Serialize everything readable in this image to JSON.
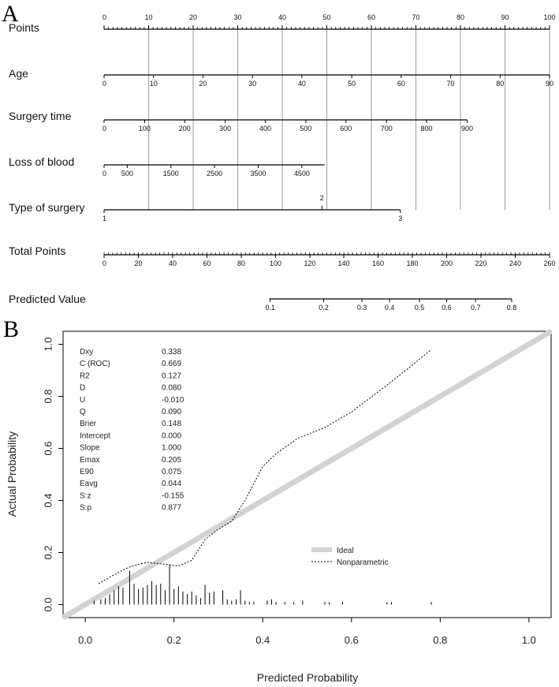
{
  "panel_a_letter": "A",
  "panel_b_letter": "B",
  "chart_data": [
    {
      "type": "nomogram",
      "rows": [
        {
          "label": "Points",
          "points": [
            0,
            100
          ],
          "ticks": [
            {
              "pt": 0,
              "label": "0"
            },
            {
              "pt": 10,
              "label": "10"
            },
            {
              "pt": 20,
              "label": "20"
            },
            {
              "pt": 30,
              "label": "30"
            },
            {
              "pt": 40,
              "label": "40"
            },
            {
              "pt": 50,
              "label": "50"
            },
            {
              "pt": 60,
              "label": "60"
            },
            {
              "pt": 70,
              "label": "70"
            },
            {
              "pt": 80,
              "label": "80"
            },
            {
              "pt": 90,
              "label": "90"
            },
            {
              "pt": 100,
              "label": "100"
            }
          ]
        },
        {
          "label": "Age",
          "points": [
            0,
            100
          ],
          "ticks": [
            {
              "pt": 0,
              "label": "0"
            },
            {
              "pt": 11.1,
              "label": "10"
            },
            {
              "pt": 22.2,
              "label": "20"
            },
            {
              "pt": 33.3,
              "label": "30"
            },
            {
              "pt": 44.4,
              "label": "40"
            },
            {
              "pt": 55.6,
              "label": "50"
            },
            {
              "pt": 66.7,
              "label": "60"
            },
            {
              "pt": 77.8,
              "label": "70"
            },
            {
              "pt": 88.9,
              "label": "80"
            },
            {
              "pt": 100,
              "label": "90"
            }
          ]
        },
        {
          "label": "Surgery time",
          "points": [
            0,
            81.5
          ],
          "ticks": [
            {
              "pt": 0,
              "label": "0"
            },
            {
              "pt": 9.1,
              "label": "100"
            },
            {
              "pt": 18.1,
              "label": "200"
            },
            {
              "pt": 27.2,
              "label": "300"
            },
            {
              "pt": 36.2,
              "label": "400"
            },
            {
              "pt": 45.3,
              "label": "500"
            },
            {
              "pt": 54.3,
              "label": "600"
            },
            {
              "pt": 63.4,
              "label": "700"
            },
            {
              "pt": 72.4,
              "label": "800"
            },
            {
              "pt": 81.5,
              "label": "900"
            }
          ]
        },
        {
          "label": "Loss of blood",
          "points": [
            0,
            49.5
          ],
          "ticks": [
            {
              "pt": 0,
              "label": "0"
            },
            {
              "pt": 5.2,
              "label": "500"
            },
            {
              "pt": 15,
              "label": "1500"
            },
            {
              "pt": 24.8,
              "label": "2500"
            },
            {
              "pt": 34.6,
              "label": "3500"
            },
            {
              "pt": 44.4,
              "label": "4500"
            }
          ]
        },
        {
          "label": "Type of surgery",
          "points": [
            0,
            66.5
          ],
          "ticks": [
            {
              "pt": 0,
              "label": "1",
              "pos": "below"
            },
            {
              "pt": 48.9,
              "label": "2",
              "pos": "above"
            },
            {
              "pt": 66.5,
              "label": "3",
              "pos": "below"
            }
          ]
        },
        {
          "label": "Total Points",
          "points": [
            0,
            100
          ],
          "ticks": [
            {
              "pt": 0,
              "label": "0"
            },
            {
              "pt": 7.7,
              "label": "20"
            },
            {
              "pt": 15.4,
              "label": "40"
            },
            {
              "pt": 23.1,
              "label": "60"
            },
            {
              "pt": 30.8,
              "label": "80"
            },
            {
              "pt": 38.5,
              "label": "100"
            },
            {
              "pt": 46.2,
              "label": "120"
            },
            {
              "pt": 53.8,
              "label": "140"
            },
            {
              "pt": 61.5,
              "label": "160"
            },
            {
              "pt": 69.2,
              "label": "180"
            },
            {
              "pt": 76.9,
              "label": "200"
            },
            {
              "pt": 84.6,
              "label": "220"
            },
            {
              "pt": 92.3,
              "label": "240"
            },
            {
              "pt": 100,
              "label": "260"
            }
          ]
        },
        {
          "label": "Predicted Value",
          "points": [
            37.1,
            91.5
          ],
          "ticks": [
            {
              "pt": 37.3,
              "label": "0.1"
            },
            {
              "pt": 49.3,
              "label": "0.2"
            },
            {
              "pt": 57.9,
              "label": "0.3"
            },
            {
              "pt": 64.1,
              "label": "0.4"
            },
            {
              "pt": 70.8,
              "label": "0.5"
            },
            {
              "pt": 76.9,
              "label": "0.6"
            },
            {
              "pt": 83.4,
              "label": "0.7"
            },
            {
              "pt": 91.5,
              "label": "0.8"
            }
          ]
        }
      ]
    },
    {
      "type": "calibration",
      "xlabel": "Predicted Probability",
      "ylabel": "Actual Probability",
      "xlim": [
        -0.05,
        1.05
      ],
      "ylim": [
        -0.05,
        1.05
      ],
      "x_ticks": [
        "0.0",
        "0.2",
        "0.4",
        "0.6",
        "0.8",
        "1.0"
      ],
      "y_ticks": [
        "0.0",
        "0.2",
        "0.4",
        "0.6",
        "0.8",
        "1.0"
      ],
      "legend": [
        {
          "name": "Ideal",
          "style": "thick-gray"
        },
        {
          "name": "Nonparametric",
          "style": "dotted"
        }
      ],
      "stats": [
        {
          "name": "Dxy",
          "value": "0.338"
        },
        {
          "name": "C (ROC)",
          "value": "0.669"
        },
        {
          "name": "R2",
          "value": "0.127"
        },
        {
          "name": "D",
          "value": "0.080"
        },
        {
          "name": "U",
          "value": "-0.010"
        },
        {
          "name": "Q",
          "value": "0.090"
        },
        {
          "name": "Brier",
          "value": "0.148"
        },
        {
          "name": "Intercept",
          "value": "0.000"
        },
        {
          "name": "Slope",
          "value": "1.000"
        },
        {
          "name": "Emax",
          "value": "0.205"
        },
        {
          "name": "E90",
          "value": "0.075"
        },
        {
          "name": "Eavg",
          "value": "0.044"
        },
        {
          "name": "S:z",
          "value": "-0.155"
        },
        {
          "name": "S:p",
          "value": "0.877"
        }
      ],
      "nonparametric": [
        [
          0.03,
          0.08
        ],
        [
          0.06,
          0.11
        ],
        [
          0.1,
          0.145
        ],
        [
          0.14,
          0.162
        ],
        [
          0.18,
          0.155
        ],
        [
          0.21,
          0.148
        ],
        [
          0.24,
          0.17
        ],
        [
          0.27,
          0.25
        ],
        [
          0.3,
          0.29
        ],
        [
          0.33,
          0.32
        ],
        [
          0.36,
          0.4
        ],
        [
          0.4,
          0.53
        ],
        [
          0.43,
          0.58
        ],
        [
          0.48,
          0.64
        ],
        [
          0.54,
          0.68
        ],
        [
          0.6,
          0.74
        ],
        [
          0.67,
          0.83
        ],
        [
          0.73,
          0.91
        ],
        [
          0.78,
          0.98
        ]
      ],
      "histogram": [
        [
          0.02,
          0.015
        ],
        [
          0.035,
          0.02
        ],
        [
          0.045,
          0.025
        ],
        [
          0.055,
          0.04
        ],
        [
          0.065,
          0.055
        ],
        [
          0.075,
          0.07
        ],
        [
          0.085,
          0.065
        ],
        [
          0.1,
          0.13
        ],
        [
          0.11,
          0.08
        ],
        [
          0.12,
          0.06
        ],
        [
          0.13,
          0.065
        ],
        [
          0.14,
          0.075
        ],
        [
          0.15,
          0.09
        ],
        [
          0.16,
          0.075
        ],
        [
          0.17,
          0.08
        ],
        [
          0.18,
          0.055
        ],
        [
          0.19,
          0.155
        ],
        [
          0.2,
          0.06
        ],
        [
          0.21,
          0.07
        ],
        [
          0.22,
          0.05
        ],
        [
          0.23,
          0.04
        ],
        [
          0.24,
          0.05
        ],
        [
          0.25,
          0.035
        ],
        [
          0.26,
          0.025
        ],
        [
          0.27,
          0.075
        ],
        [
          0.28,
          0.045
        ],
        [
          0.29,
          0.05
        ],
        [
          0.31,
          0.055
        ],
        [
          0.32,
          0.02
        ],
        [
          0.33,
          0.015
        ],
        [
          0.34,
          0.02
        ],
        [
          0.35,
          0.055
        ],
        [
          0.36,
          0.015
        ],
        [
          0.37,
          0.01
        ],
        [
          0.38,
          0.01
        ],
        [
          0.41,
          0.015
        ],
        [
          0.42,
          0.02
        ],
        [
          0.43,
          0.01
        ],
        [
          0.45,
          0.01
        ],
        [
          0.47,
          0.01
        ],
        [
          0.49,
          0.015
        ],
        [
          0.54,
          0.01
        ],
        [
          0.55,
          0.01
        ],
        [
          0.58,
          0.01
        ],
        [
          0.68,
          0.01
        ],
        [
          0.69,
          0.01
        ],
        [
          0.78,
          0.01
        ]
      ]
    }
  ]
}
